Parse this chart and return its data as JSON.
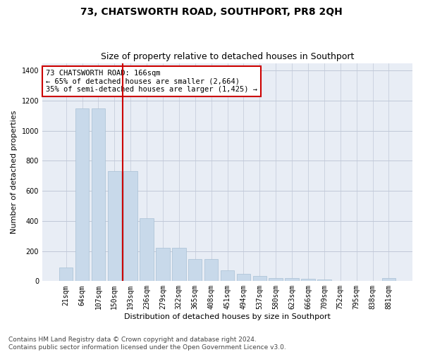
{
  "title": "73, CHATSWORTH ROAD, SOUTHPORT, PR8 2QH",
  "subtitle": "Size of property relative to detached houses in Southport",
  "xlabel": "Distribution of detached houses by size in Southport",
  "ylabel": "Number of detached properties",
  "categories": [
    "21sqm",
    "64sqm",
    "107sqm",
    "150sqm",
    "193sqm",
    "236sqm",
    "279sqm",
    "322sqm",
    "365sqm",
    "408sqm",
    "451sqm",
    "494sqm",
    "537sqm",
    "580sqm",
    "623sqm",
    "666sqm",
    "709sqm",
    "752sqm",
    "795sqm",
    "838sqm",
    "881sqm"
  ],
  "values": [
    90,
    1150,
    1150,
    730,
    730,
    420,
    220,
    220,
    145,
    145,
    70,
    50,
    33,
    22,
    18,
    15,
    12,
    0,
    0,
    0,
    20
  ],
  "bar_color": "#c8d9ea",
  "bar_edge_color": "#a8c0d4",
  "vline_color": "#cc0000",
  "annotation_text": "73 CHATSWORTH ROAD: 166sqm\n← 65% of detached houses are smaller (2,664)\n35% of semi-detached houses are larger (1,425) →",
  "annotation_box_color": "#ffffff",
  "annotation_box_edge": "#cc0000",
  "ylim": [
    0,
    1450
  ],
  "yticks": [
    0,
    200,
    400,
    600,
    800,
    1000,
    1200,
    1400
  ],
  "grid_color": "#c0c8d8",
  "bg_color": "#e8edf5",
  "footer_text": "Contains HM Land Registry data © Crown copyright and database right 2024.\nContains public sector information licensed under the Open Government Licence v3.0.",
  "title_fontsize": 10,
  "subtitle_fontsize": 9,
  "axis_label_fontsize": 8,
  "tick_fontsize": 7,
  "annotation_fontsize": 7.5,
  "footer_fontsize": 6.5
}
